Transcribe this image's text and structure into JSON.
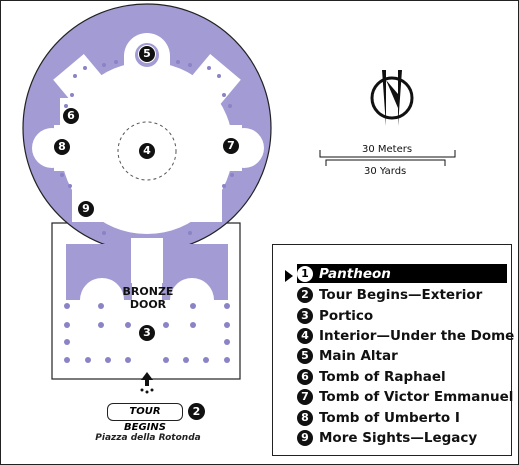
{
  "map": {
    "door_line1": "BRONZE",
    "door_line2": "DOOR",
    "piazza_label": "Piazza della Rotonda",
    "tour_begins_label": "TOUR BEGINS",
    "tour_begins_number": "2",
    "colors": {
      "building": "#A29BD4",
      "outline": "#222222",
      "background": "#FFFFFF"
    },
    "markers": [
      {
        "num": "5",
        "ref": "Main Altar"
      },
      {
        "num": "6",
        "ref": "Tomb of Raphael"
      },
      {
        "num": "8",
        "ref": "Tomb of Umberto I"
      },
      {
        "num": "4",
        "ref": "Interior—Under the Dome"
      },
      {
        "num": "7",
        "ref": "Tomb of Victor Emmanuel II"
      },
      {
        "num": "9",
        "ref": "More Sights—Legacy"
      },
      {
        "num": "3",
        "ref": "Portico"
      }
    ]
  },
  "compass": {
    "icon": "north-arrow-icon"
  },
  "scale": {
    "meters": "30 Meters",
    "yards": "30 Yards"
  },
  "legend": {
    "items": [
      {
        "num": "1",
        "label": "Pantheon",
        "active": true
      },
      {
        "num": "2",
        "label": "Tour Begins—Exterior"
      },
      {
        "num": "3",
        "label": "Portico"
      },
      {
        "num": "4",
        "label": "Interior—Under the Dome"
      },
      {
        "num": "5",
        "label": "Main Altar"
      },
      {
        "num": "6",
        "label": "Tomb of Raphael"
      },
      {
        "num": "7",
        "label": "Tomb of Victor Emmanuel II"
      },
      {
        "num": "8",
        "label": "Tomb of Umberto I"
      },
      {
        "num": "9",
        "label": "More Sights—Legacy"
      }
    ]
  }
}
